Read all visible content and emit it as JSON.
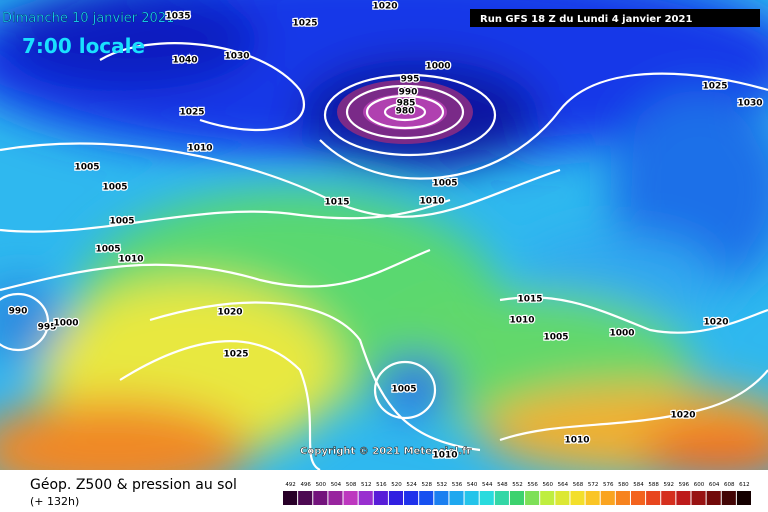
{
  "header": {
    "date": "Dimanche 10 janvier 2021",
    "time": "7:00 locale",
    "run": "Run GFS 18 Z du Lundi 4 janvier 2021"
  },
  "isobar_labels": [
    "1020",
    "1025",
    "1035",
    "1040",
    "1030",
    "1000",
    "995",
    "990",
    "985",
    "980",
    "1025",
    "1030",
    "1025",
    "1010",
    "1005",
    "1005",
    "1005",
    "1015",
    "1010",
    "1005",
    "1005",
    "1010",
    "990",
    "995",
    "1000",
    "1020",
    "1015",
    "1010",
    "1005",
    "1000",
    "1020",
    "1025",
    "1005",
    "1020",
    "1010",
    "1010"
  ],
  "copyright": "Copyright © 2021 Meteociel.fr",
  "footer": {
    "title": "Géop. Z500 & pression au sol",
    "lead": "(+ 132h)"
  },
  "scale": [
    492,
    496,
    500,
    504,
    508,
    512,
    516,
    520,
    524,
    528,
    532,
    536,
    540,
    544,
    548,
    552,
    556,
    560,
    564,
    568,
    572,
    576,
    580,
    584,
    588,
    592,
    596,
    600,
    604,
    608,
    612
  ]
}
